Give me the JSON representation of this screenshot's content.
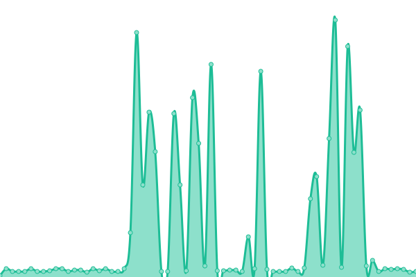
{
  "chart_data": {
    "type": "area",
    "title": "",
    "xlabel": "",
    "ylabel": "",
    "grid": false,
    "axes_visible": false,
    "smooth": true,
    "markers": true,
    "ylim": [
      0,
      400
    ],
    "x": [
      0,
      1,
      2,
      3,
      4,
      5,
      6,
      7,
      8,
      9,
      10,
      11,
      12,
      13,
      14,
      15,
      16,
      17,
      18,
      19,
      20,
      21,
      22,
      23,
      24,
      25,
      26,
      27,
      28,
      29,
      30,
      31,
      32,
      33,
      34,
      35,
      36,
      37,
      38,
      39,
      40,
      41,
      42,
      43,
      44,
      45,
      46,
      47,
      48,
      49,
      50,
      51,
      52,
      53,
      54,
      55,
      56,
      57,
      58,
      59,
      60,
      61,
      62,
      63,
      64,
      65,
      66,
      67
    ],
    "series": [
      {
        "values": [
          2,
          12,
          8,
          8,
          8,
          12,
          8,
          8,
          9,
          12,
          12,
          8,
          10,
          10,
          7,
          12,
          9,
          12,
          8,
          8,
          12,
          64,
          353,
          133,
          238,
          181,
          8,
          8,
          236,
          133,
          9,
          259,
          193,
          16,
          307,
          9,
          9,
          10,
          10,
          8,
          58,
          12,
          297,
          11,
          8,
          8,
          8,
          13,
          8,
          13,
          113,
          145,
          17,
          200,
          371,
          14,
          333,
          180,
          241,
          16,
          24,
          8,
          12,
          11,
          12,
          11,
          7,
          8
        ],
        "line_color": "#1dbd96",
        "fill_color": "#8de0cb"
      }
    ]
  }
}
